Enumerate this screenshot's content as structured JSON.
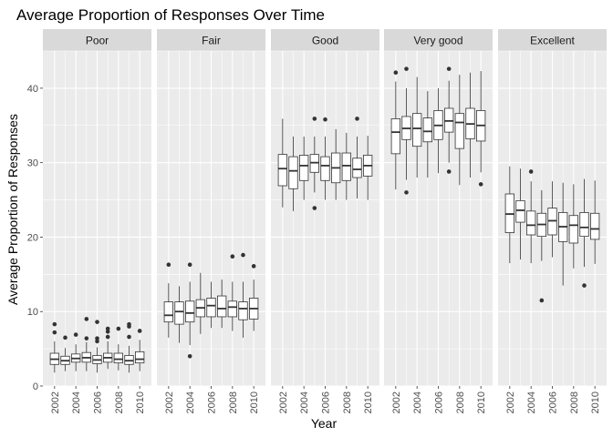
{
  "chart_data": {
    "type": "boxplot",
    "title": "Average Proportion of Responses Over Time",
    "xlabel": "Year",
    "ylabel": "Average Proportion of Responses",
    "ylim": [
      0,
      45
    ],
    "y_ticks": [
      0,
      10,
      20,
      30,
      40
    ],
    "x_years": [
      2002,
      2003,
      2004,
      2005,
      2006,
      2007,
      2008,
      2009,
      2010
    ],
    "x_tick_labels": [
      "2002",
      "2004",
      "2006",
      "2008",
      "2010"
    ],
    "grid": true,
    "colors": {
      "panel_bg": "#ebebeb",
      "strip_bg": "#d9d9d9",
      "grid_major": "#ffffff",
      "box_fill": "#ffffff",
      "box_stroke": "#333333",
      "outlier": "#333333"
    },
    "facets": [
      {
        "name": "Poor",
        "boxes": [
          {
            "year": 2002,
            "min": 1.8,
            "q1": 2.9,
            "median": 3.6,
            "q3": 4.4,
            "max": 6.0,
            "outliers": [
              7.2,
              8.3
            ]
          },
          {
            "year": 2003,
            "min": 2.0,
            "q1": 2.9,
            "median": 3.4,
            "q3": 4.0,
            "max": 5.1,
            "outliers": [
              6.5
            ]
          },
          {
            "year": 2004,
            "min": 2.0,
            "q1": 3.2,
            "median": 3.7,
            "q3": 4.3,
            "max": 5.6,
            "outliers": [
              6.9
            ]
          },
          {
            "year": 2005,
            "min": 2.0,
            "q1": 3.2,
            "median": 3.8,
            "q3": 4.5,
            "max": 5.9,
            "outliers": [
              6.4,
              9.0
            ]
          },
          {
            "year": 2006,
            "min": 1.8,
            "q1": 3.0,
            "median": 3.5,
            "q3": 4.1,
            "max": 5.2,
            "outliers": [
              6.0,
              6.4,
              8.6
            ]
          },
          {
            "year": 2007,
            "min": 2.3,
            "q1": 3.2,
            "median": 3.8,
            "q3": 4.4,
            "max": 6.0,
            "outliers": [
              6.6,
              7.3,
              7.7
            ]
          },
          {
            "year": 2008,
            "min": 2.1,
            "q1": 3.1,
            "median": 3.6,
            "q3": 4.4,
            "max": 5.6,
            "outliers": [
              7.7
            ]
          },
          {
            "year": 2009,
            "min": 1.8,
            "q1": 2.9,
            "median": 3.4,
            "q3": 4.1,
            "max": 5.4,
            "outliers": [
              6.6,
              8.0,
              8.3
            ]
          },
          {
            "year": 2010,
            "min": 2.0,
            "q1": 3.1,
            "median": 3.6,
            "q3": 4.6,
            "max": 6.2,
            "outliers": [
              7.4
            ]
          }
        ]
      },
      {
        "name": "Fair",
        "boxes": [
          {
            "year": 2002,
            "min": 6.5,
            "q1": 8.6,
            "median": 9.5,
            "q3": 11.3,
            "max": 13.8,
            "outliers": [
              16.3
            ]
          },
          {
            "year": 2003,
            "min": 5.8,
            "q1": 8.3,
            "median": 10.0,
            "q3": 11.3,
            "max": 13.4,
            "outliers": []
          },
          {
            "year": 2004,
            "min": 5.5,
            "q1": 8.6,
            "median": 9.8,
            "q3": 11.4,
            "max": 14.0,
            "outliers": [
              4.0,
              16.3
            ]
          },
          {
            "year": 2005,
            "min": 7.0,
            "q1": 9.3,
            "median": 10.5,
            "q3": 11.6,
            "max": 15.2,
            "outliers": []
          },
          {
            "year": 2006,
            "min": 7.8,
            "q1": 9.3,
            "median": 10.8,
            "q3": 11.8,
            "max": 14.0,
            "outliers": []
          },
          {
            "year": 2007,
            "min": 7.8,
            "q1": 9.3,
            "median": 10.4,
            "q3": 12.1,
            "max": 14.3,
            "outliers": []
          },
          {
            "year": 2008,
            "min": 7.4,
            "q1": 9.3,
            "median": 10.6,
            "q3": 11.4,
            "max": 14.0,
            "outliers": [
              17.4
            ]
          },
          {
            "year": 2009,
            "min": 6.5,
            "q1": 8.9,
            "median": 10.4,
            "q3": 11.3,
            "max": 14.0,
            "outliers": [
              17.6
            ]
          },
          {
            "year": 2010,
            "min": 7.4,
            "q1": 9.0,
            "median": 10.4,
            "q3": 11.8,
            "max": 14.3,
            "outliers": [
              16.1
            ]
          }
        ]
      },
      {
        "name": "Good",
        "boxes": [
          {
            "year": 2002,
            "min": 24.0,
            "q1": 26.9,
            "median": 29.2,
            "q3": 31.1,
            "max": 35.9,
            "outliers": []
          },
          {
            "year": 2003,
            "min": 23.5,
            "q1": 26.5,
            "median": 28.9,
            "q3": 30.8,
            "max": 33.5,
            "outliers": []
          },
          {
            "year": 2004,
            "min": 25.0,
            "q1": 27.6,
            "median": 29.6,
            "q3": 31.0,
            "max": 33.5,
            "outliers": []
          },
          {
            "year": 2005,
            "min": 26.0,
            "q1": 28.7,
            "median": 30.0,
            "q3": 31.1,
            "max": 33.5,
            "outliers": [
              23.9,
              35.9
            ]
          },
          {
            "year": 2006,
            "min": 25.0,
            "q1": 27.6,
            "median": 29.6,
            "q3": 30.8,
            "max": 33.5,
            "outliers": [
              35.8
            ]
          },
          {
            "year": 2007,
            "min": 25.0,
            "q1": 27.3,
            "median": 29.3,
            "q3": 31.3,
            "max": 34.5,
            "outliers": []
          },
          {
            "year": 2008,
            "min": 25.0,
            "q1": 27.6,
            "median": 29.6,
            "q3": 31.3,
            "max": 34.0,
            "outliers": []
          },
          {
            "year": 2009,
            "min": 25.2,
            "q1": 28.0,
            "median": 29.1,
            "q3": 30.6,
            "max": 33.5,
            "outliers": [
              35.9
            ]
          },
          {
            "year": 2010,
            "min": 25.0,
            "q1": 28.2,
            "median": 29.6,
            "q3": 31.0,
            "max": 33.6,
            "outliers": []
          }
        ]
      },
      {
        "name": "Very good",
        "boxes": [
          {
            "year": 2002,
            "min": 26.4,
            "q1": 31.2,
            "median": 34.1,
            "q3": 35.9,
            "max": 40.9,
            "outliers": [
              42.1
            ]
          },
          {
            "year": 2003,
            "min": 27.7,
            "q1": 33.1,
            "median": 34.6,
            "q3": 36.2,
            "max": 40.0,
            "outliers": [
              26.0,
              42.6
            ]
          },
          {
            "year": 2004,
            "min": 28.0,
            "q1": 32.2,
            "median": 34.6,
            "q3": 36.6,
            "max": 41.5,
            "outliers": []
          },
          {
            "year": 2005,
            "min": 28.0,
            "q1": 32.8,
            "median": 34.2,
            "q3": 36.0,
            "max": 39.6,
            "outliers": []
          },
          {
            "year": 2006,
            "min": 28.6,
            "q1": 33.1,
            "median": 35.0,
            "q3": 37.0,
            "max": 40.0,
            "outliers": []
          },
          {
            "year": 2007,
            "min": 30.0,
            "q1": 34.1,
            "median": 35.6,
            "q3": 37.3,
            "max": 41.0,
            "outliers": [
              28.8,
              42.6
            ]
          },
          {
            "year": 2008,
            "min": 27.0,
            "q1": 31.9,
            "median": 35.4,
            "q3": 36.6,
            "max": 41.8,
            "outliers": []
          },
          {
            "year": 2009,
            "min": 28.0,
            "q1": 33.2,
            "median": 35.2,
            "q3": 37.3,
            "max": 42.1,
            "outliers": []
          },
          {
            "year": 2010,
            "min": 28.7,
            "q1": 32.9,
            "median": 35.0,
            "q3": 37.0,
            "max": 42.3,
            "outliers": [
              27.1
            ]
          }
        ]
      },
      {
        "name": "Excellent",
        "boxes": [
          {
            "year": 2002,
            "min": 16.5,
            "q1": 20.6,
            "median": 23.1,
            "q3": 25.8,
            "max": 29.5,
            "outliers": []
          },
          {
            "year": 2003,
            "min": 17.0,
            "q1": 22.0,
            "median": 23.6,
            "q3": 24.9,
            "max": 29.2,
            "outliers": []
          },
          {
            "year": 2004,
            "min": 16.5,
            "q1": 20.3,
            "median": 21.6,
            "q3": 23.5,
            "max": 27.5,
            "outliers": [
              28.8
            ]
          },
          {
            "year": 2005,
            "min": 16.8,
            "q1": 20.1,
            "median": 21.7,
            "q3": 23.2,
            "max": 26.3,
            "outliers": [
              11.5
            ]
          },
          {
            "year": 2006,
            "min": 17.3,
            "q1": 20.3,
            "median": 22.2,
            "q3": 23.9,
            "max": 27.5,
            "outliers": []
          },
          {
            "year": 2007,
            "min": 13.5,
            "q1": 19.4,
            "median": 21.4,
            "q3": 23.3,
            "max": 27.3,
            "outliers": []
          },
          {
            "year": 2008,
            "min": 15.8,
            "q1": 19.2,
            "median": 21.6,
            "q3": 22.9,
            "max": 27.1,
            "outliers": []
          },
          {
            "year": 2009,
            "min": 16.0,
            "q1": 20.1,
            "median": 21.3,
            "q3": 23.3,
            "max": 27.8,
            "outliers": [
              13.5
            ]
          },
          {
            "year": 2010,
            "min": 16.4,
            "q1": 19.7,
            "median": 21.1,
            "q3": 23.2,
            "max": 27.6,
            "outliers": []
          }
        ]
      }
    ]
  }
}
